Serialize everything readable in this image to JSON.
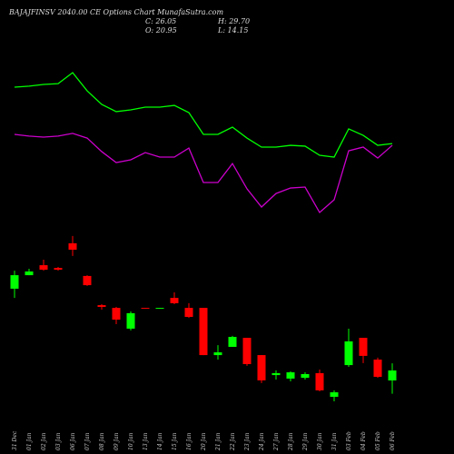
{
  "chart_data": {
    "type": "candlestick",
    "title": "BAJAJFINSV 2040.00 CE Options Chart MunafaSutra.com",
    "close_text": "C: 26.05",
    "high_text": "H: 29.70",
    "open_text": "O: 20.95",
    "low_text": "L: 14.15",
    "categories": [
      "31 Dec",
      "01 Jan",
      "02 Jan",
      "03 Jan",
      "06 Jan",
      "07 Jan",
      "08 Jan",
      "09 Jan",
      "10 Jan",
      "13 Jan",
      "14 Jan",
      "15 Jan",
      "16 Jan",
      "20 Jan",
      "21 Jan",
      "22 Jan",
      "23 Jan",
      "24 Jan",
      "27 Jan",
      "28 Jan",
      "29 Jan",
      "30 Jan",
      "31 Jan",
      "03 Feb",
      "04 Feb",
      "05 Feb",
      "06 Feb"
    ],
    "open": [
      67.8,
      74.7,
      79.8,
      78.4,
      91.0,
      74.3,
      59.4,
      58.0,
      47.4,
      58.0,
      57.6,
      63.1,
      58.0,
      58.0,
      33.9,
      38.1,
      42.7,
      33.9,
      23.7,
      21.9,
      22.3,
      24.7,
      12.6,
      28.8,
      42.7,
      31.6,
      20.95
    ],
    "high": [
      77.0,
      78.0,
      82.6,
      78.9,
      94.7,
      74.7,
      59.9,
      58.5,
      56.2,
      58.0,
      58.0,
      65.9,
      60.4,
      58.0,
      39.0,
      43.7,
      42.7,
      33.9,
      26.1,
      25.6,
      25.1,
      26.5,
      15.9,
      47.4,
      42.7,
      32.6,
      29.7
    ],
    "low": [
      63.1,
      74.7,
      77.0,
      77.0,
      84.5,
      69.2,
      57.1,
      49.7,
      46.5,
      57.6,
      57.6,
      59.9,
      52.9,
      33.9,
      31.6,
      38.1,
      28.4,
      19.6,
      21.4,
      20.5,
      21.4,
      15.4,
      10.3,
      27.9,
      29.8,
      22.3,
      14.15
    ],
    "close": [
      74.7,
      76.6,
      77.5,
      77.5,
      87.7,
      69.6,
      58.5,
      52.0,
      55.3,
      57.6,
      58.0,
      60.4,
      53.4,
      33.9,
      35.3,
      43.2,
      29.3,
      21.0,
      24.7,
      25.1,
      24.2,
      15.9,
      14.9,
      40.9,
      33.5,
      22.8,
      26.05
    ],
    "up_color": "#00ff00",
    "down_color": "#ff0000",
    "series": [
      {
        "color": "#00ff00",
        "values": [
          170.7,
          171.2,
          172.1,
          172.5,
          178.1,
          168.8,
          161.9,
          158.2,
          159.1,
          160.5,
          160.5,
          161.4,
          157.7,
          146.6,
          146.6,
          150.3,
          144.7,
          140.1,
          140.1,
          141.0,
          140.6,
          135.9,
          135.0,
          149.4,
          146.1,
          141.0,
          141.9
        ]
      },
      {
        "color": "#cc00cc",
        "values": [
          146.6,
          145.7,
          145.2,
          145.7,
          147.1,
          144.7,
          137.8,
          132.2,
          133.6,
          137.3,
          135.0,
          135.0,
          139.6,
          122.0,
          122.0,
          131.7,
          118.8,
          109.5,
          116.4,
          119.2,
          119.7,
          106.7,
          113.2,
          138.2,
          140.1,
          134.5,
          141.0
        ]
      }
    ],
    "ylim": [
      -16.6,
      215.2
    ]
  }
}
